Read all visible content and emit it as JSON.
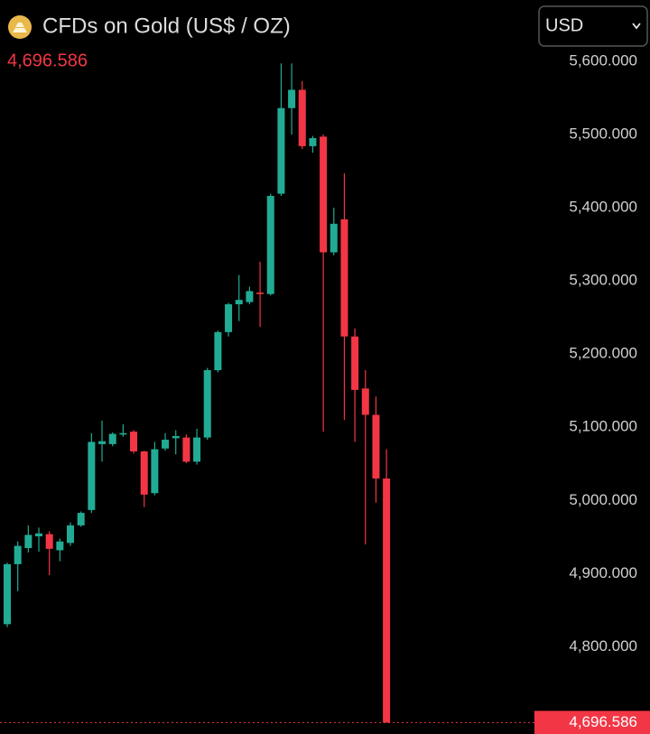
{
  "chart_data": {
    "type": "candlestick",
    "title": "CFDs on Gold (US$ / OZ)",
    "currency": "USD",
    "last_price": {
      "value": 4696.586,
      "label": "4,696.586"
    },
    "up_color": "#22ab94",
    "down_color": "#f23645",
    "ylim": [
      4681,
      5622
    ],
    "yticks": [
      {
        "value": 5600,
        "label": "5,600.000"
      },
      {
        "value": 5500,
        "label": "5,500.000"
      },
      {
        "value": 5400,
        "label": "5,400.000"
      },
      {
        "value": 5300,
        "label": "5,300.000"
      },
      {
        "value": 5200,
        "label": "5,200.000"
      },
      {
        "value": 5100,
        "label": "5,100.000"
      },
      {
        "value": 5000,
        "label": "5,000.000"
      },
      {
        "value": 4900,
        "label": "4,900.000"
      },
      {
        "value": 4800,
        "label": "4,800.000"
      }
    ],
    "open": [
      4831,
      4913,
      4935,
      4951,
      4954,
      4932,
      4942,
      4966,
      4987,
      5077,
      5077,
      5090,
      5094,
      5067,
      5010,
      5071,
      5085,
      5086,
      5053,
      5086,
      5178,
      5230,
      5268,
      5271,
      5284,
      5282,
      5419,
      5536,
      5561,
      5484,
      5497,
      5339,
      5384,
      5224,
      5153,
      5117,
      5030
    ],
    "high": [
      4915,
      4944,
      4966,
      4963,
      4958,
      4948,
      4970,
      4985,
      5092,
      5109,
      5093,
      5104,
      5096,
      5068,
      5080,
      5092,
      5096,
      5090,
      5098,
      5181,
      5232,
      5270,
      5308,
      5292,
      5326,
      5419,
      5597,
      5597,
      5573,
      5498,
      5500,
      5400,
      5447,
      5235,
      5178,
      5142,
      5070
    ],
    "low": [
      4827,
      4876,
      4929,
      4930,
      4898,
      4917,
      4938,
      4964,
      4983,
      5053,
      5074,
      5087,
      5064,
      4991,
      5007,
      5068,
      5063,
      5051,
      5049,
      5083,
      5175,
      5224,
      5245,
      5268,
      5237,
      5280,
      5416,
      5500,
      5480,
      5475,
      5094,
      5335,
      5110,
      5080,
      4940,
      4997,
      4696.586
    ],
    "close": [
      4913,
      4938,
      4953,
      4955,
      4934,
      4944,
      4966,
      4983,
      5080,
      5081,
      5091,
      5092,
      5067,
      5008,
      5070,
      5083,
      5088,
      5053,
      5086,
      5178,
      5230,
      5268,
      5274,
      5286,
      5282,
      5416,
      5536,
      5561,
      5484,
      5495,
      5339,
      5378,
      5224,
      5151,
      5117,
      5030,
      4696.586
    ]
  }
}
